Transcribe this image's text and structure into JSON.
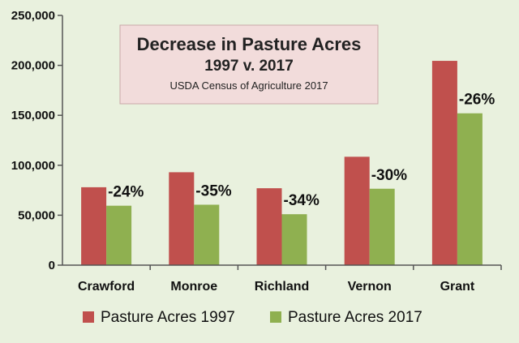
{
  "chart_data": {
    "type": "bar",
    "title": "Decrease in Pasture Acres",
    "subtitle": "1997 v. 2017",
    "source": "USDA Census of Agriculture 2017",
    "categories": [
      "Crawford",
      "Monroe",
      "Richland",
      "Vernon",
      "Grant"
    ],
    "series": [
      {
        "name": "Pasture Acres 1997",
        "color": "#c0504d",
        "values": [
          78000,
          93000,
          77000,
          108500,
          204500
        ]
      },
      {
        "name": "Pasture Acres 2017",
        "color": "#8fb050",
        "values": [
          59500,
          60500,
          51000,
          76500,
          152000
        ]
      }
    ],
    "annotations": [
      "-24%",
      "-35%",
      "-34%",
      "-30%",
      "-26%"
    ],
    "ylim": [
      0,
      250000
    ],
    "yticks": [
      0,
      50000,
      100000,
      150000,
      200000,
      250000
    ],
    "ytick_labels": [
      "0",
      "50,000",
      "100,000",
      "150,000",
      "200,000",
      "250,000"
    ],
    "legend_position": "bottom",
    "grid": false
  }
}
